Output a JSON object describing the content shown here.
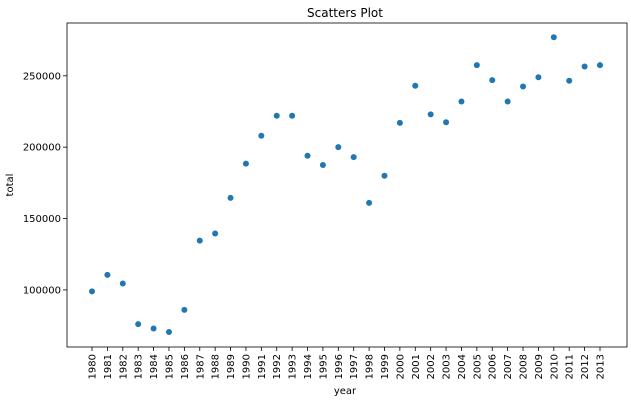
{
  "chart_data": {
    "type": "scatter",
    "title": "Scatters Plot",
    "xlabel": "year",
    "ylabel": "total",
    "x": [
      "1980",
      "1981",
      "1982",
      "1983",
      "1984",
      "1985",
      "1986",
      "1987",
      "1988",
      "1989",
      "1990",
      "1991",
      "1992",
      "1993",
      "1994",
      "1995",
      "1996",
      "1997",
      "1998",
      "1999",
      "2000",
      "2001",
      "2002",
      "2003",
      "2004",
      "2005",
      "2006",
      "2007",
      "2008",
      "2009",
      "2010",
      "2011",
      "2012",
      "2013"
    ],
    "series": [
      {
        "values": [
          99000,
          110500,
          104500,
          76000,
          73000,
          70500,
          86000,
          134500,
          139500,
          164500,
          188500,
          208000,
          222000,
          222000,
          194000,
          187500,
          200000,
          193000,
          161000,
          180000,
          217000,
          243000,
          223000,
          217500,
          232000,
          257500,
          247000,
          232000,
          242500,
          249000,
          277000,
          246500,
          256500,
          257500
        ]
      }
    ],
    "yticks": [
      100000,
      150000,
      200000,
      250000
    ],
    "ylim": [
      60000,
      287000
    ],
    "grid": false,
    "marker_color": "#1f77b4"
  }
}
